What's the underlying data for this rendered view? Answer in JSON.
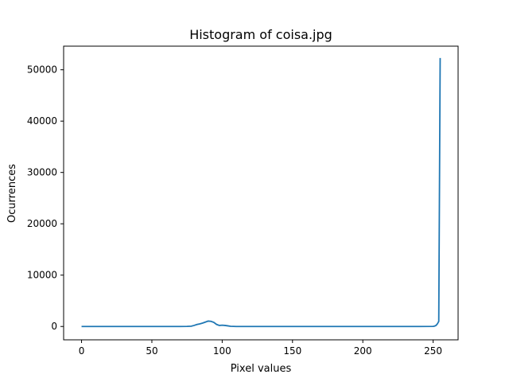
{
  "chart_data": {
    "type": "line",
    "title": "Histogram of coisa.jpg",
    "xlabel": "Pixel values",
    "ylabel": "Ocurrences",
    "xlim": [
      -12.75,
      267.75
    ],
    "ylim": [
      -2600,
      54600
    ],
    "xticks": [
      0,
      50,
      100,
      150,
      200,
      250
    ],
    "yticks": [
      0,
      10000,
      20000,
      30000,
      40000,
      50000
    ],
    "grid": false,
    "color": "#1f77b4",
    "x": [
      0,
      10,
      20,
      30,
      40,
      50,
      60,
      70,
      75,
      78,
      80,
      82,
      84,
      86,
      88,
      90,
      92,
      94,
      96,
      98,
      100,
      102,
      104,
      106,
      110,
      120,
      140,
      160,
      180,
      200,
      220,
      240,
      250,
      251,
      252,
      253,
      254,
      255
    ],
    "y": [
      0,
      0,
      0,
      0,
      0,
      0,
      0,
      0,
      10,
      60,
      200,
      380,
      500,
      650,
      850,
      1050,
      1000,
      800,
      400,
      200,
      250,
      200,
      120,
      40,
      0,
      0,
      0,
      0,
      0,
      0,
      0,
      0,
      20,
      80,
      200,
      500,
      1000,
      52300
    ]
  }
}
